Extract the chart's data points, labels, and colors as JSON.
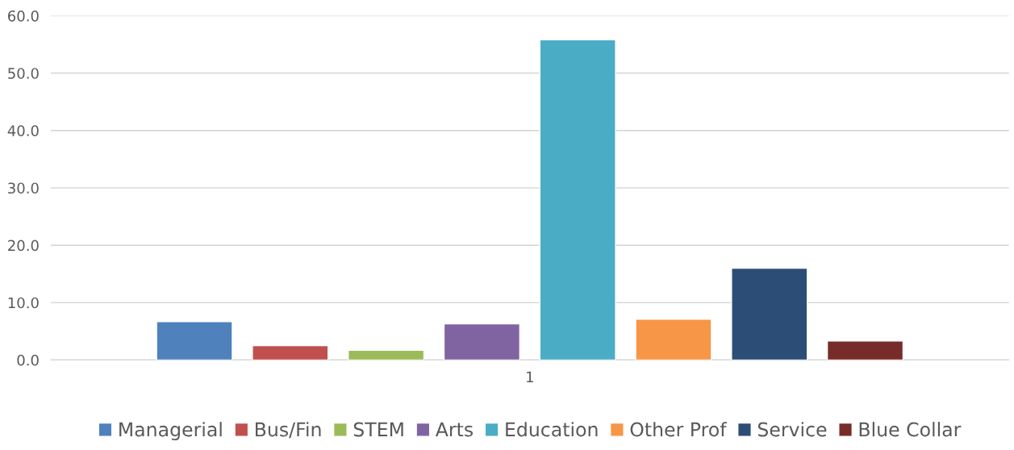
{
  "chart_data": {
    "type": "bar",
    "categories": [
      "1"
    ],
    "series": [
      {
        "name": "Managerial",
        "color": "#4f81bd",
        "values": [
          6.7
        ]
      },
      {
        "name": "Bus/Fin",
        "color": "#c0504d",
        "values": [
          2.5
        ]
      },
      {
        "name": "STEM",
        "color": "#9bbb59",
        "values": [
          1.7
        ]
      },
      {
        "name": "Arts",
        "color": "#8064a2",
        "values": [
          6.3
        ]
      },
      {
        "name": "Education",
        "color": "#4bacc6",
        "values": [
          55.8
        ]
      },
      {
        "name": "Other Prof",
        "color": "#f79646",
        "values": [
          7.1
        ]
      },
      {
        "name": "Service",
        "color": "#2c4d75",
        "values": [
          16.0
        ]
      },
      {
        "name": "Blue Collar",
        "color": "#772c2a",
        "values": [
          3.3
        ]
      }
    ],
    "ylim": [
      0,
      60
    ],
    "yticks": [
      {
        "value": 0,
        "label": "0.0"
      },
      {
        "value": 10,
        "label": "10.0"
      },
      {
        "value": 20,
        "label": "20.0"
      },
      {
        "value": 30,
        "label": "30.0"
      },
      {
        "value": 40,
        "label": "40.0"
      },
      {
        "value": 50,
        "label": "50.0"
      },
      {
        "value": 60,
        "label": "60.0"
      }
    ],
    "grid": "y",
    "legend": "bottom"
  }
}
